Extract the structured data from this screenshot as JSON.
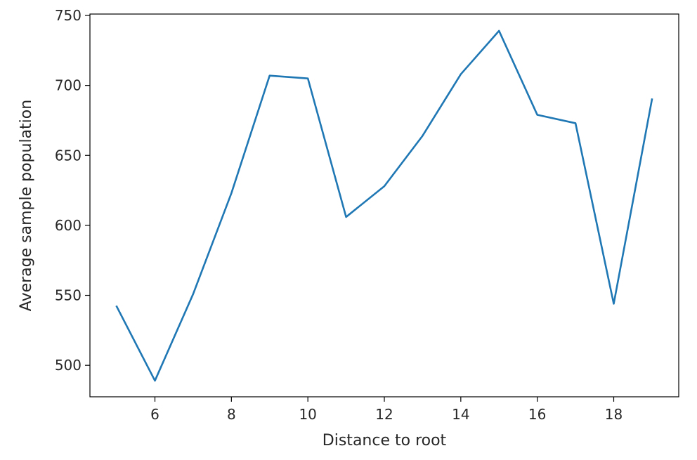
{
  "chart_data": {
    "type": "line",
    "title": "",
    "xlabel": "Distance to root",
    "ylabel": "Average sample population",
    "x": [
      5,
      6,
      7,
      8,
      9,
      10,
      11,
      12,
      13,
      14,
      15,
      16,
      17,
      18,
      19
    ],
    "series": [
      {
        "name": "Average sample population",
        "color": "#1f77b4",
        "values": [
          542,
          489,
          551,
          623,
          707,
          705,
          606,
          628,
          664,
          708,
          739,
          679,
          673,
          544,
          690
        ]
      }
    ],
    "xlim": [
      4.3,
      19.7
    ],
    "ylim": [
      477.5,
      751
    ],
    "xticks": [
      6,
      8,
      10,
      12,
      14,
      16,
      18
    ],
    "xtick_labels": [
      "6",
      "8",
      "10",
      "12",
      "14",
      "16",
      "18"
    ],
    "yticks": [
      500,
      550,
      600,
      650,
      700,
      750
    ],
    "ytick_labels": [
      "500",
      "550",
      "600",
      "650",
      "700",
      "750"
    ],
    "grid": false,
    "legend": "none"
  }
}
